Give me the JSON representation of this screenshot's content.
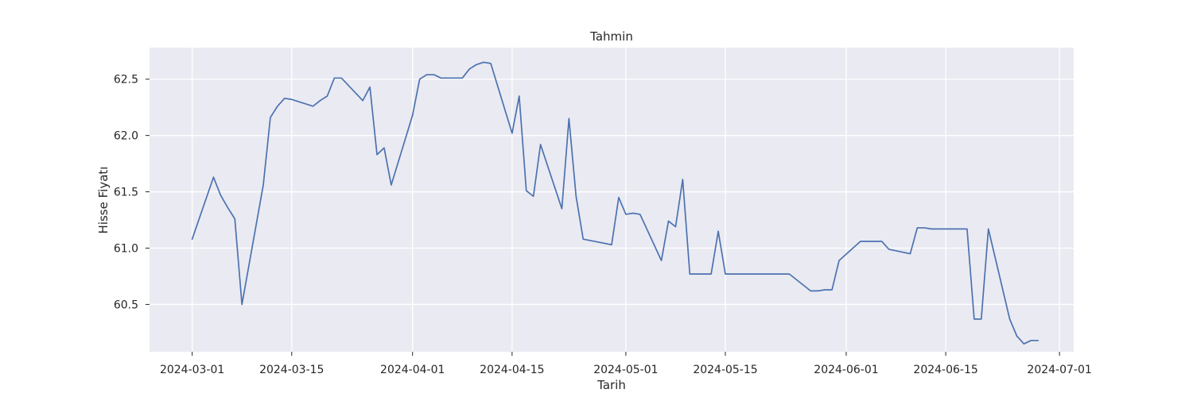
{
  "chart_data": {
    "type": "line",
    "title": "Tahmin",
    "xlabel": "Tarih",
    "ylabel": "Hisse Fiyatı",
    "x_ticks": [
      "2024-03-01",
      "2024-03-15",
      "2024-04-01",
      "2024-04-15",
      "2024-05-01",
      "2024-05-15",
      "2024-06-01",
      "2024-06-15",
      "2024-07-01"
    ],
    "y_ticks": [
      60.5,
      61.0,
      61.5,
      62.0,
      62.5
    ],
    "xlim": [
      "2024-02-24",
      "2024-07-03"
    ],
    "ylim": [
      60.08,
      62.78
    ],
    "grid": true,
    "colors": {
      "line": "#4c72b0",
      "background": "#eaeaf2",
      "grid": "#ffffff"
    },
    "series": [
      {
        "x": [
          "2024-03-01",
          "2024-03-04",
          "2024-03-05",
          "2024-03-06",
          "2024-03-07",
          "2024-03-08",
          "2024-03-11",
          "2024-03-12",
          "2024-03-13",
          "2024-03-14",
          "2024-03-15",
          "2024-03-18",
          "2024-03-19",
          "2024-03-20",
          "2024-03-21",
          "2024-03-22",
          "2024-03-25",
          "2024-03-26",
          "2024-03-27",
          "2024-03-28",
          "2024-03-29",
          "2024-04-01",
          "2024-04-02",
          "2024-04-03",
          "2024-04-04",
          "2024-04-05",
          "2024-04-08",
          "2024-04-09",
          "2024-04-10",
          "2024-04-11",
          "2024-04-12",
          "2024-04-15",
          "2024-04-16",
          "2024-04-17",
          "2024-04-18",
          "2024-04-19",
          "2024-04-22",
          "2024-04-23",
          "2024-04-24",
          "2024-04-25",
          "2024-04-29",
          "2024-04-30",
          "2024-05-01",
          "2024-05-02",
          "2024-05-03",
          "2024-05-06",
          "2024-05-07",
          "2024-05-08",
          "2024-05-09",
          "2024-05-10",
          "2024-05-13",
          "2024-05-14",
          "2024-05-15",
          "2024-05-24",
          "2024-05-27",
          "2024-05-28",
          "2024-05-29",
          "2024-05-30",
          "2024-05-31",
          "2024-06-03",
          "2024-06-06",
          "2024-06-07",
          "2024-06-10",
          "2024-06-11",
          "2024-06-12",
          "2024-06-13",
          "2024-06-18",
          "2024-06-19",
          "2024-06-20",
          "2024-06-21",
          "2024-06-24",
          "2024-06-25",
          "2024-06-26",
          "2024-06-27",
          "2024-06-28"
        ],
        "values": [
          61.08,
          61.63,
          61.47,
          61.36,
          61.26,
          60.5,
          61.56,
          62.16,
          62.26,
          62.33,
          62.32,
          62.26,
          62.31,
          62.35,
          62.51,
          62.51,
          62.31,
          62.43,
          61.83,
          61.89,
          61.56,
          62.18,
          62.5,
          62.54,
          62.54,
          62.51,
          62.51,
          62.59,
          62.63,
          62.65,
          62.64,
          62.02,
          62.35,
          61.51,
          61.46,
          61.92,
          61.35,
          62.15,
          61.46,
          61.08,
          61.03,
          61.45,
          61.3,
          61.31,
          61.3,
          60.89,
          61.24,
          61.19,
          61.61,
          60.77,
          60.77,
          61.15,
          60.77,
          60.77,
          60.62,
          60.62,
          60.63,
          60.63,
          60.89,
          61.06,
          61.06,
          60.99,
          60.95,
          61.18,
          61.18,
          61.17,
          61.17,
          60.37,
          60.37,
          61.17,
          60.37,
          60.22,
          60.15,
          60.18,
          60.18
        ]
      }
    ]
  }
}
